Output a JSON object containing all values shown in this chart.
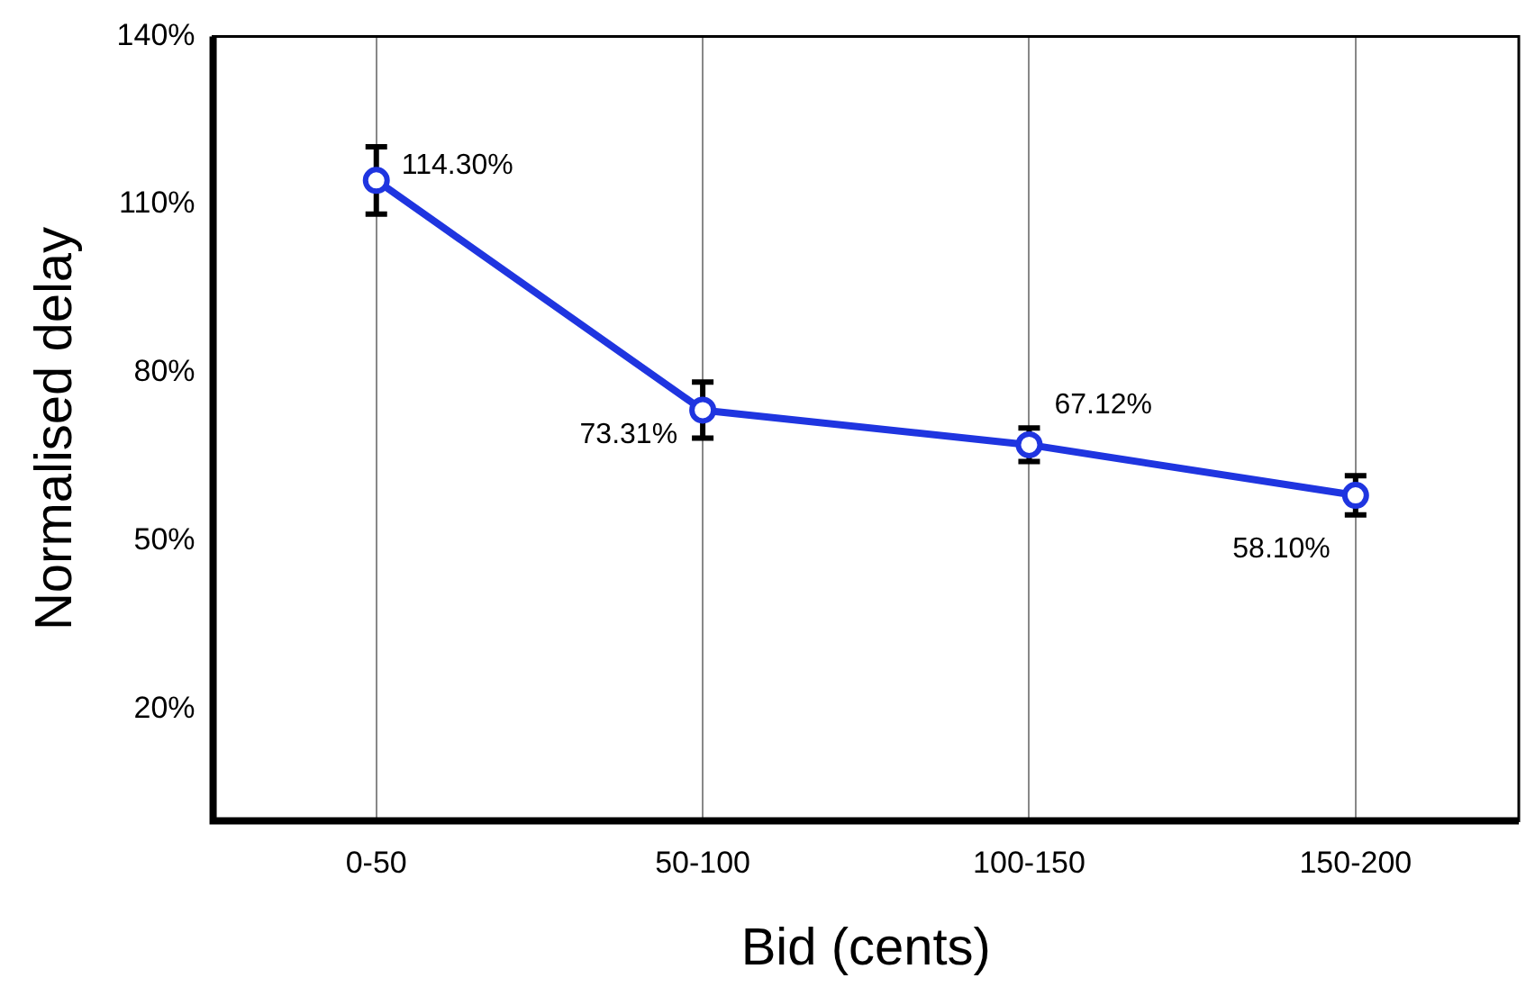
{
  "chart_data": {
    "type": "line",
    "xlabel": "Bid (cents)",
    "ylabel": "Normalised delay",
    "categories": [
      "0-50",
      "50-100",
      "100-150",
      "150-200"
    ],
    "series": [
      {
        "color": "#1f35e0",
        "values": [
          114.3,
          73.31,
          67.12,
          58.1
        ],
        "errors": [
          6,
          5,
          3,
          3.5
        ],
        "value_labels": [
          "114.30%",
          "73.31%",
          "67.12%",
          "58.10%"
        ]
      }
    ],
    "ylim": [
      0,
      140
    ],
    "yticks": [
      {
        "value": 20,
        "label": "20%"
      },
      {
        "value": 50,
        "label": "50%"
      },
      {
        "value": 80,
        "label": "80%"
      },
      {
        "value": 110,
        "label": "110%"
      },
      {
        "value": 140,
        "label": "140%"
      }
    ],
    "grid": "x",
    "legend": false,
    "marker": "circle",
    "line_style": "solid"
  }
}
